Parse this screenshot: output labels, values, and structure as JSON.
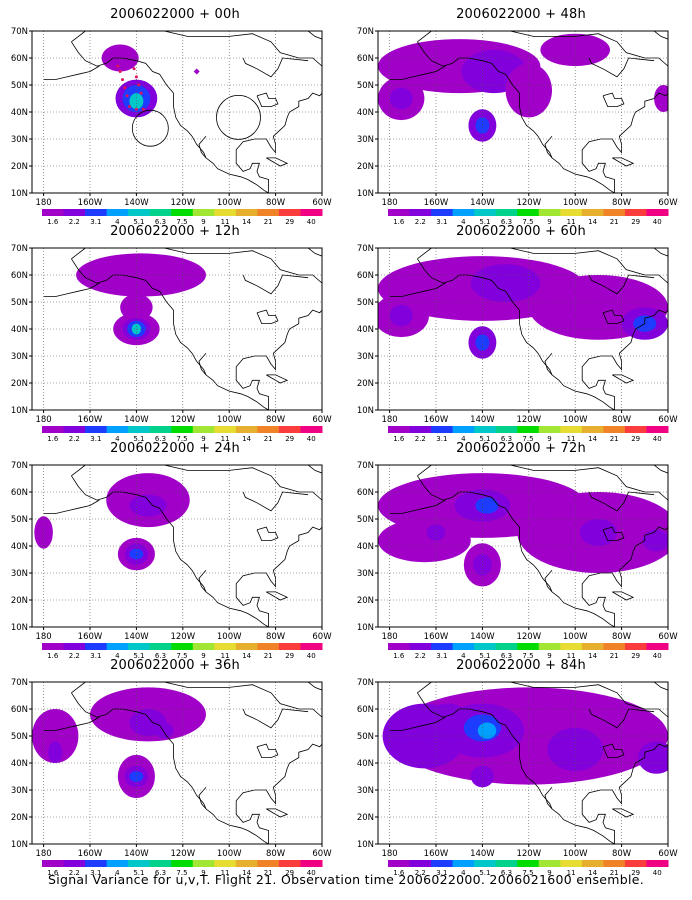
{
  "caption": "Signal Variance for u,v,T. Flight 21. Observation time 2006022000. 2006021600 ensemble.",
  "colors": {
    "levels": [
      "#a000c8",
      "#8200dc",
      "#1e3cff",
      "#00a0ff",
      "#00c8c8",
      "#00d28c",
      "#00dc00",
      "#a0e632",
      "#e6dc32",
      "#e6af2d",
      "#f08228",
      "#fa3c3c",
      "#f00082"
    ],
    "track": "#e0145a",
    "coast": "#000000",
    "grid": "#555555"
  },
  "chart_data": [
    {
      "type": "heatmap",
      "title": "2006022000 + 00h",
      "xticks": [
        "180",
        "160W",
        "140W",
        "120W",
        "100W",
        "80W",
        "60W"
      ],
      "yticks": [
        "10N",
        "20N",
        "30N",
        "40N",
        "50N",
        "60N",
        "70N"
      ],
      "xlim": [
        -185,
        -60
      ],
      "ylim": [
        10,
        70
      ],
      "colorbar": [
        "1.6",
        "2.2",
        "3.1",
        "4",
        "5.1",
        "6.3",
        "7.5",
        "9",
        "11",
        "14",
        "21",
        "29",
        "40"
      ],
      "blobs": [
        [
          -147,
          60,
          8,
          5,
          0
        ],
        [
          -140,
          45,
          9,
          7,
          1
        ],
        [
          -140,
          45,
          6,
          5,
          2
        ],
        [
          -140,
          44,
          3,
          3,
          4
        ]
      ]
    },
    {
      "type": "heatmap",
      "title": "2006022000 + 48h",
      "xticks": [
        "180",
        "160W",
        "140W",
        "120W",
        "100W",
        "80W",
        "60W"
      ],
      "yticks": [
        "10N",
        "20N",
        "30N",
        "40N",
        "50N",
        "60N",
        "70N"
      ],
      "xlim": [
        -185,
        -60
      ],
      "ylim": [
        10,
        70
      ],
      "colorbar": [
        "1.6",
        "2.2",
        "3.1",
        "4",
        "5.1",
        "6.3",
        "7.5",
        "9",
        "11",
        "14",
        "21",
        "29",
        "40"
      ],
      "blobs": [
        [
          -150,
          57,
          35,
          10,
          0
        ],
        [
          -175,
          45,
          10,
          8,
          0
        ],
        [
          -175,
          45,
          5,
          4,
          1
        ],
        [
          -140,
          35,
          6,
          6,
          1
        ],
        [
          -140,
          35,
          3,
          3,
          2
        ],
        [
          -135,
          55,
          14,
          8,
          1
        ],
        [
          -120,
          48,
          10,
          10,
          0
        ],
        [
          -100,
          63,
          15,
          6,
          0
        ],
        [
          -62,
          45,
          4,
          5,
          0
        ]
      ]
    },
    {
      "type": "heatmap",
      "title": "2006022000 + 12h",
      "xticks": [
        "180",
        "160W",
        "140W",
        "120W",
        "100W",
        "80W",
        "60W"
      ],
      "yticks": [
        "10N",
        "20N",
        "30N",
        "40N",
        "50N",
        "60N",
        "70N"
      ],
      "xlim": [
        -185,
        -60
      ],
      "ylim": [
        10,
        70
      ],
      "colorbar": [
        "1.6",
        "2.2",
        "3.1",
        "4",
        "5.1",
        "6.3",
        "7.5",
        "9",
        "11",
        "14",
        "21",
        "29",
        "40"
      ],
      "blobs": [
        [
          -138,
          60,
          28,
          8,
          0
        ],
        [
          -140,
          48,
          7,
          5,
          0
        ],
        [
          -140,
          40,
          10,
          6,
          0
        ],
        [
          -140,
          40,
          6,
          4,
          1
        ],
        [
          -140,
          40,
          4,
          3,
          2
        ],
        [
          -140,
          40,
          2,
          2,
          4
        ]
      ]
    },
    {
      "type": "heatmap",
      "title": "2006022000 + 60h",
      "xticks": [
        "180",
        "160W",
        "140W",
        "120W",
        "100W",
        "80W",
        "60W"
      ],
      "yticks": [
        "10N",
        "20N",
        "30N",
        "40N",
        "50N",
        "60N",
        "70N"
      ],
      "xlim": [
        -185,
        -60
      ],
      "ylim": [
        10,
        70
      ],
      "colorbar": [
        "1.6",
        "2.2",
        "3.1",
        "4",
        "5.1",
        "6.3",
        "7.5",
        "9",
        "11",
        "14",
        "21",
        "29",
        "40"
      ],
      "blobs": [
        [
          -140,
          55,
          45,
          12,
          0
        ],
        [
          -90,
          48,
          30,
          12,
          0
        ],
        [
          -175,
          45,
          12,
          8,
          0
        ],
        [
          -175,
          45,
          5,
          4,
          1
        ],
        [
          -140,
          35,
          6,
          6,
          1
        ],
        [
          -140,
          35,
          3,
          3,
          2
        ],
        [
          -130,
          57,
          15,
          7,
          1
        ],
        [
          -70,
          42,
          10,
          6,
          1
        ],
        [
          -70,
          42,
          5,
          3,
          2
        ]
      ]
    },
    {
      "type": "heatmap",
      "title": "2006022000 + 24h",
      "xticks": [
        "180",
        "160W",
        "140W",
        "120W",
        "100W",
        "80W",
        "60W"
      ],
      "yticks": [
        "10N",
        "20N",
        "30N",
        "40N",
        "50N",
        "60N",
        "70N"
      ],
      "xlim": [
        -185,
        -60
      ],
      "ylim": [
        10,
        70
      ],
      "colorbar": [
        "1.6",
        "2.2",
        "3.1",
        "4",
        "5.1",
        "6.3",
        "7.5",
        "9",
        "11",
        "14",
        "21",
        "29",
        "40"
      ],
      "blobs": [
        [
          -135,
          57,
          18,
          10,
          0
        ],
        [
          -135,
          55,
          8,
          4,
          1
        ],
        [
          -140,
          37,
          8,
          6,
          0
        ],
        [
          -140,
          37,
          5,
          4,
          1
        ],
        [
          -140,
          37,
          3,
          2,
          2
        ],
        [
          -180,
          45,
          4,
          6,
          0
        ]
      ]
    },
    {
      "type": "heatmap",
      "title": "2006022000 + 72h",
      "xticks": [
        "180",
        "160W",
        "140W",
        "120W",
        "100W",
        "80W",
        "60W"
      ],
      "yticks": [
        "10N",
        "20N",
        "30N",
        "40N",
        "50N",
        "60N",
        "70N"
      ],
      "xlim": [
        -185,
        -60
      ],
      "ylim": [
        10,
        70
      ],
      "colorbar": [
        "1.6",
        "2.2",
        "3.1",
        "4",
        "5.1",
        "6.3",
        "7.5",
        "9",
        "11",
        "14",
        "21",
        "29",
        "40"
      ],
      "blobs": [
        [
          -140,
          55,
          45,
          12,
          0
        ],
        [
          -90,
          45,
          35,
          15,
          0
        ],
        [
          -165,
          42,
          20,
          8,
          0
        ],
        [
          -140,
          33,
          8,
          8,
          0
        ],
        [
          -140,
          55,
          12,
          6,
          1
        ],
        [
          -138,
          55,
          5,
          3,
          2
        ],
        [
          -160,
          45,
          4,
          3,
          1
        ],
        [
          -140,
          33,
          4,
          4,
          1
        ],
        [
          -90,
          45,
          8,
          5,
          1
        ],
        [
          -65,
          42,
          6,
          4,
          1
        ]
      ]
    },
    {
      "type": "heatmap",
      "title": "2006022000 + 36h",
      "xticks": [
        "180",
        "160W",
        "140W",
        "120W",
        "100W",
        "80W",
        "60W"
      ],
      "yticks": [
        "10N",
        "20N",
        "30N",
        "40N",
        "50N",
        "60N",
        "70N"
      ],
      "xlim": [
        -185,
        -60
      ],
      "ylim": [
        10,
        70
      ],
      "colorbar": [
        "1.6",
        "2.2",
        "3.1",
        "4",
        "5.1",
        "6.3",
        "7.5",
        "9",
        "11",
        "14",
        "21",
        "29",
        "40"
      ],
      "blobs": [
        [
          -135,
          58,
          25,
          10,
          0
        ],
        [
          -175,
          50,
          10,
          10,
          0
        ],
        [
          -175,
          44,
          3,
          4,
          1
        ],
        [
          -140,
          35,
          8,
          8,
          0
        ],
        [
          -140,
          35,
          5,
          4,
          1
        ],
        [
          -140,
          35,
          3,
          2,
          2
        ],
        [
          -135,
          55,
          8,
          5,
          1
        ],
        [
          -128,
          52,
          4,
          3,
          1
        ]
      ]
    },
    {
      "type": "heatmap",
      "title": "2006022000 + 84h",
      "xticks": [
        "180",
        "160W",
        "140W",
        "120W",
        "100W",
        "80W",
        "60W"
      ],
      "yticks": [
        "10N",
        "20N",
        "30N",
        "40N",
        "50N",
        "60N",
        "70N"
      ],
      "xlim": [
        -185,
        -60
      ],
      "ylim": [
        10,
        70
      ],
      "colorbar": [
        "1.6",
        "2.2",
        "3.1",
        "4",
        "5.1",
        "6.3",
        "7.5",
        "9",
        "11",
        "14",
        "21",
        "29",
        "40"
      ],
      "blobs": [
        [
          -120,
          50,
          60,
          18,
          0
        ],
        [
          -165,
          50,
          18,
          12,
          1
        ],
        [
          -140,
          52,
          18,
          10,
          1
        ],
        [
          -140,
          53,
          8,
          5,
          2
        ],
        [
          -138,
          52,
          4,
          3,
          3
        ],
        [
          -100,
          45,
          12,
          8,
          1
        ],
        [
          -65,
          42,
          8,
          6,
          1
        ],
        [
          -155,
          58,
          8,
          4,
          1
        ],
        [
          -140,
          35,
          5,
          4,
          1
        ]
      ]
    }
  ]
}
